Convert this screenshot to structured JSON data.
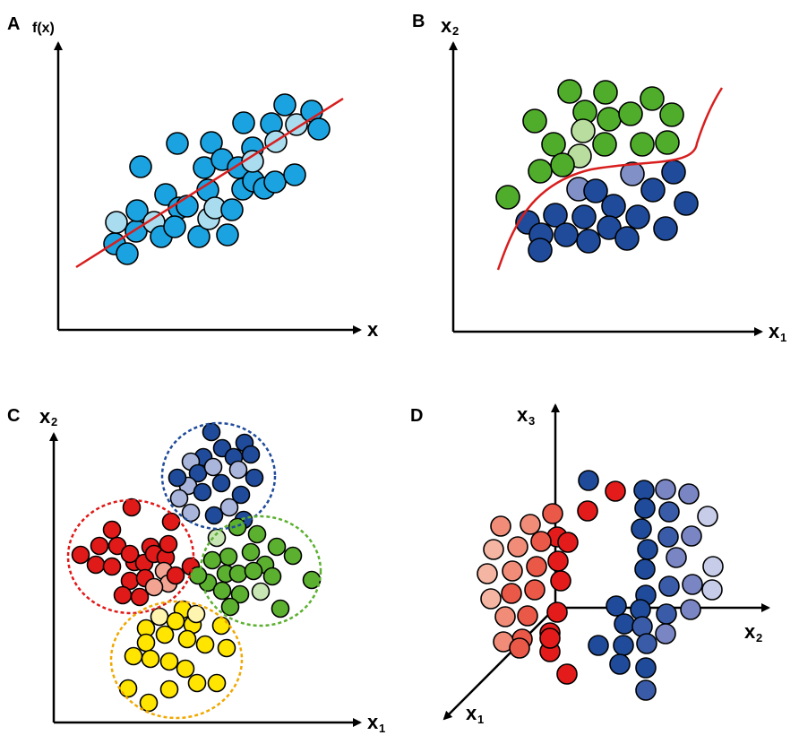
{
  "panels": {
    "a": {
      "label": "A",
      "x_axis_label": "x",
      "y_axis_label": "f(x)",
      "description": "regression",
      "colors": {
        "point": "#1aa3e0",
        "point_light": "#a9dcef",
        "fit_line": "#d81e1e"
      }
    },
    "b": {
      "label": "B",
      "x_axis_label": "x",
      "x_axis_subscript": "1",
      "y_axis_label": "x",
      "y_axis_subscript": "2",
      "description": "classification",
      "colors": {
        "class_1": "#4fad2b",
        "class_1_light": "#b8dd9f",
        "class_2": "#1f4b9a",
        "class_2_light": "#8190c6",
        "boundary": "#d81e1e"
      }
    },
    "c": {
      "label": "C",
      "x_axis_label": "x",
      "x_axis_subscript": "1",
      "y_axis_label": "x",
      "y_axis_subscript": "2",
      "description": "clustering",
      "colors": {
        "cluster_blue": "#1f4b9a",
        "cluster_red": "#e01919",
        "cluster_green": "#5cb030",
        "cluster_yellow": "#ffe500",
        "blue_light": "#a9b5db",
        "red_light": "#f3a392",
        "green_light": "#c8e6b4",
        "yellow_light": "#fff5b0",
        "ring_blue": "#1f4b9a",
        "ring_red": "#e01919",
        "ring_green": "#5cb030",
        "ring_yellow": "#f0a800"
      }
    },
    "d": {
      "label": "D",
      "x_axis_label": "x",
      "x_axis_subscript": "1",
      "y_axis_label": "x",
      "y_axis_subscript": "2",
      "z_axis_label": "x",
      "z_axis_subscript": "3",
      "description": "dimensionality reduction (3D)",
      "colors": {
        "red_strong": "#e31b1b",
        "red_mid": "#ea5848",
        "red_light": "#f08c78",
        "red_pale": "#f4b6a3",
        "blue_strong": "#1f4b9a",
        "blue_mid": "#3a5ca8",
        "blue_light": "#7a86c4",
        "blue_pale": "#c7cde8"
      }
    }
  }
}
